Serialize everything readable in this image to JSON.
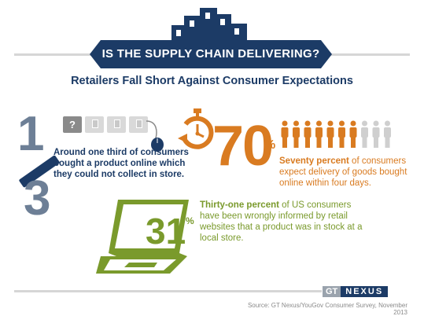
{
  "header": {
    "title": "IS THE SUPPLY CHAIN DELIVERING?",
    "subtitle": "Retailers Fall Short Against Consumer Expectations"
  },
  "fraction": {
    "numerator": "1",
    "denominator": "3",
    "box_mark": "?",
    "text": "Around one third of consumers bought a product online which they could not collect in store."
  },
  "stat70": {
    "value": "70",
    "percent_sign": "%",
    "highlight": "Seventy percent",
    "text": " of consumers expect delivery of goods bought online within four days.",
    "people_filled": 7,
    "people_total": 10,
    "colors": {
      "filled": "#d97b21",
      "empty": "#cfcfcf"
    }
  },
  "stat31": {
    "value": "31",
    "percent_sign": "%",
    "highlight": "Thirty-one percent",
    "text": " of US consumers have been wrongly informed by retail websites that a product was in stock at a local store."
  },
  "footer": {
    "logo_gt": "GT",
    "logo_nexus": "NEXUS",
    "source": "Source: GT Nexus/YouGov Consumer Survey, November 2013"
  },
  "colors": {
    "navy": "#1c3b66",
    "orange": "#d97b21",
    "green": "#7a9a2c",
    "gray": "#6d7f96"
  }
}
